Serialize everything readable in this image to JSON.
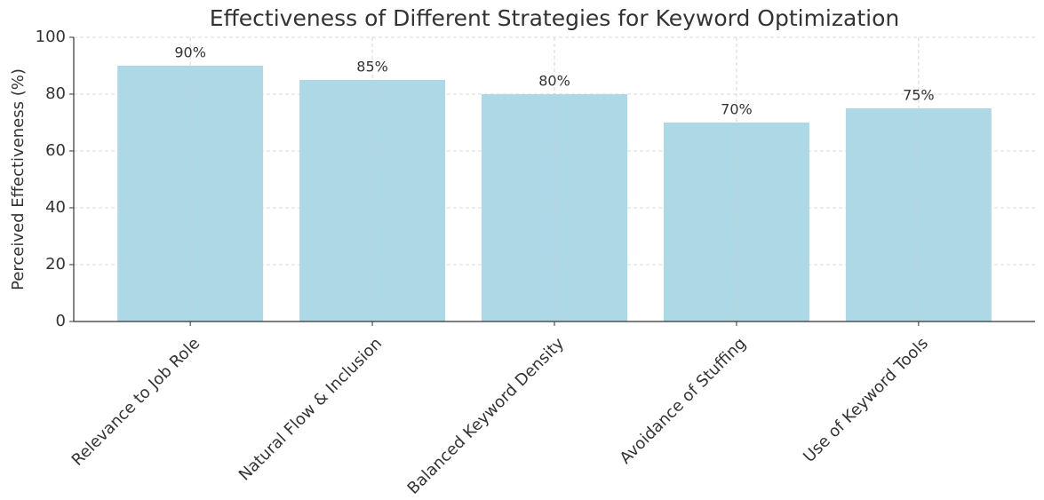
{
  "chart_data": {
    "type": "bar",
    "title": "Effectiveness of Different Strategies for Keyword Optimization",
    "y_label": "Perceived Effectiveness (%)",
    "categories": [
      "Relevance to Job Role",
      "Natural Flow & Inclusion",
      "Balanced Keyword Density",
      "Avoidance of Stuffing",
      "Use of Keyword Tools"
    ],
    "values": [
      90,
      85,
      80,
      70,
      75
    ],
    "value_labels": [
      "90%",
      "85%",
      "80%",
      "70%",
      "75%"
    ],
    "color": "#add8e6",
    "ylim": [
      0,
      100
    ],
    "yticks": [
      0,
      20,
      40,
      60,
      80,
      100
    ],
    "grid": true
  }
}
